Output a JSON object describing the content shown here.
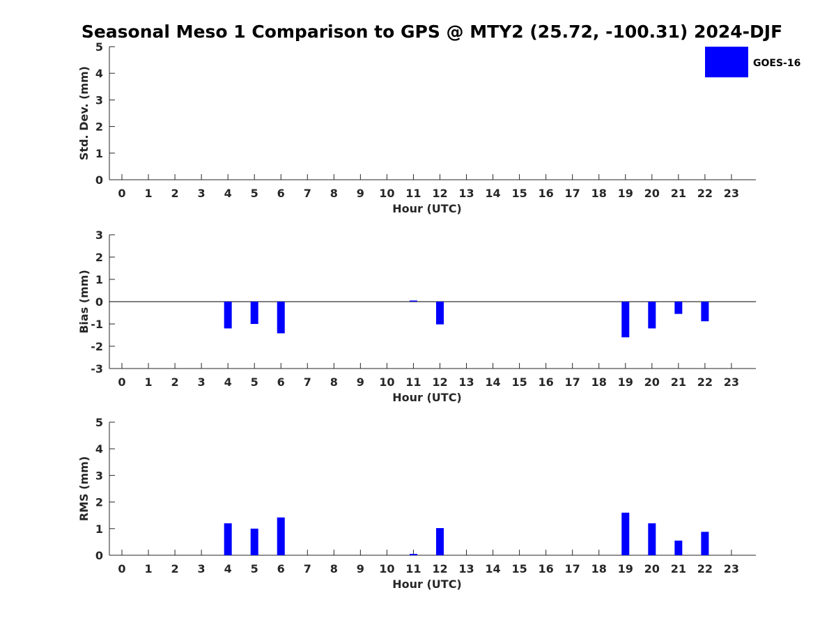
{
  "title": "Seasonal Meso 1 Comparison to GPS @ MTY2 (25.72, -100.31) 2024-DJF",
  "legend": {
    "label": "GOES-16",
    "color": "#0000ff",
    "placement": "top-right"
  },
  "colors": {
    "bar": "#0000ff",
    "axis": "#262626",
    "zero_line": "#000000"
  },
  "chart_data": [
    {
      "type": "bar",
      "categories": [
        "0",
        "1",
        "2",
        "3",
        "4",
        "5",
        "6",
        "7",
        "8",
        "9",
        "10",
        "11",
        "12",
        "13",
        "14",
        "15",
        "16",
        "17",
        "18",
        "19",
        "20",
        "21",
        "22",
        "23"
      ],
      "xlabel": "Hour (UTC)",
      "ylabel": "Std. Dev. (mm)",
      "ylim": [
        0,
        5
      ],
      "yticks": [
        "0",
        "1",
        "2",
        "3",
        "4",
        "5"
      ],
      "grid": false,
      "series": [
        {
          "name": "GOES-16",
          "values": [
            null,
            null,
            null,
            null,
            0,
            0,
            0,
            null,
            null,
            null,
            null,
            0,
            0,
            null,
            null,
            null,
            null,
            null,
            null,
            0,
            0,
            0,
            0,
            null
          ]
        }
      ]
    },
    {
      "type": "bar",
      "categories": [
        "0",
        "1",
        "2",
        "3",
        "4",
        "5",
        "6",
        "7",
        "8",
        "9",
        "10",
        "11",
        "12",
        "13",
        "14",
        "15",
        "16",
        "17",
        "18",
        "19",
        "20",
        "21",
        "22",
        "23"
      ],
      "xlabel": "Hour (UTC)",
      "ylabel": "Bias (mm)",
      "ylim": [
        -3,
        3
      ],
      "yticks": [
        "-3",
        "-2",
        "-1",
        "0",
        "1",
        "2",
        "3"
      ],
      "grid": false,
      "series": [
        {
          "name": "GOES-16",
          "values": [
            null,
            null,
            null,
            null,
            -1.2,
            -1.0,
            -1.42,
            null,
            null,
            null,
            null,
            0.05,
            -1.02,
            null,
            null,
            null,
            null,
            null,
            null,
            -1.6,
            -1.2,
            -0.55,
            -0.88,
            null
          ]
        }
      ]
    },
    {
      "type": "bar",
      "categories": [
        "0",
        "1",
        "2",
        "3",
        "4",
        "5",
        "6",
        "7",
        "8",
        "9",
        "10",
        "11",
        "12",
        "13",
        "14",
        "15",
        "16",
        "17",
        "18",
        "19",
        "20",
        "21",
        "22",
        "23"
      ],
      "xlabel": "Hour (UTC)",
      "ylabel": "RMS (mm)",
      "ylim": [
        0,
        5
      ],
      "yticks": [
        "0",
        "1",
        "2",
        "3",
        "4",
        "5"
      ],
      "grid": false,
      "series": [
        {
          "name": "GOES-16",
          "values": [
            null,
            null,
            null,
            null,
            1.2,
            1.0,
            1.42,
            null,
            null,
            null,
            null,
            0.05,
            1.02,
            null,
            null,
            null,
            null,
            null,
            null,
            1.6,
            1.2,
            0.55,
            0.88,
            null
          ]
        }
      ]
    }
  ]
}
